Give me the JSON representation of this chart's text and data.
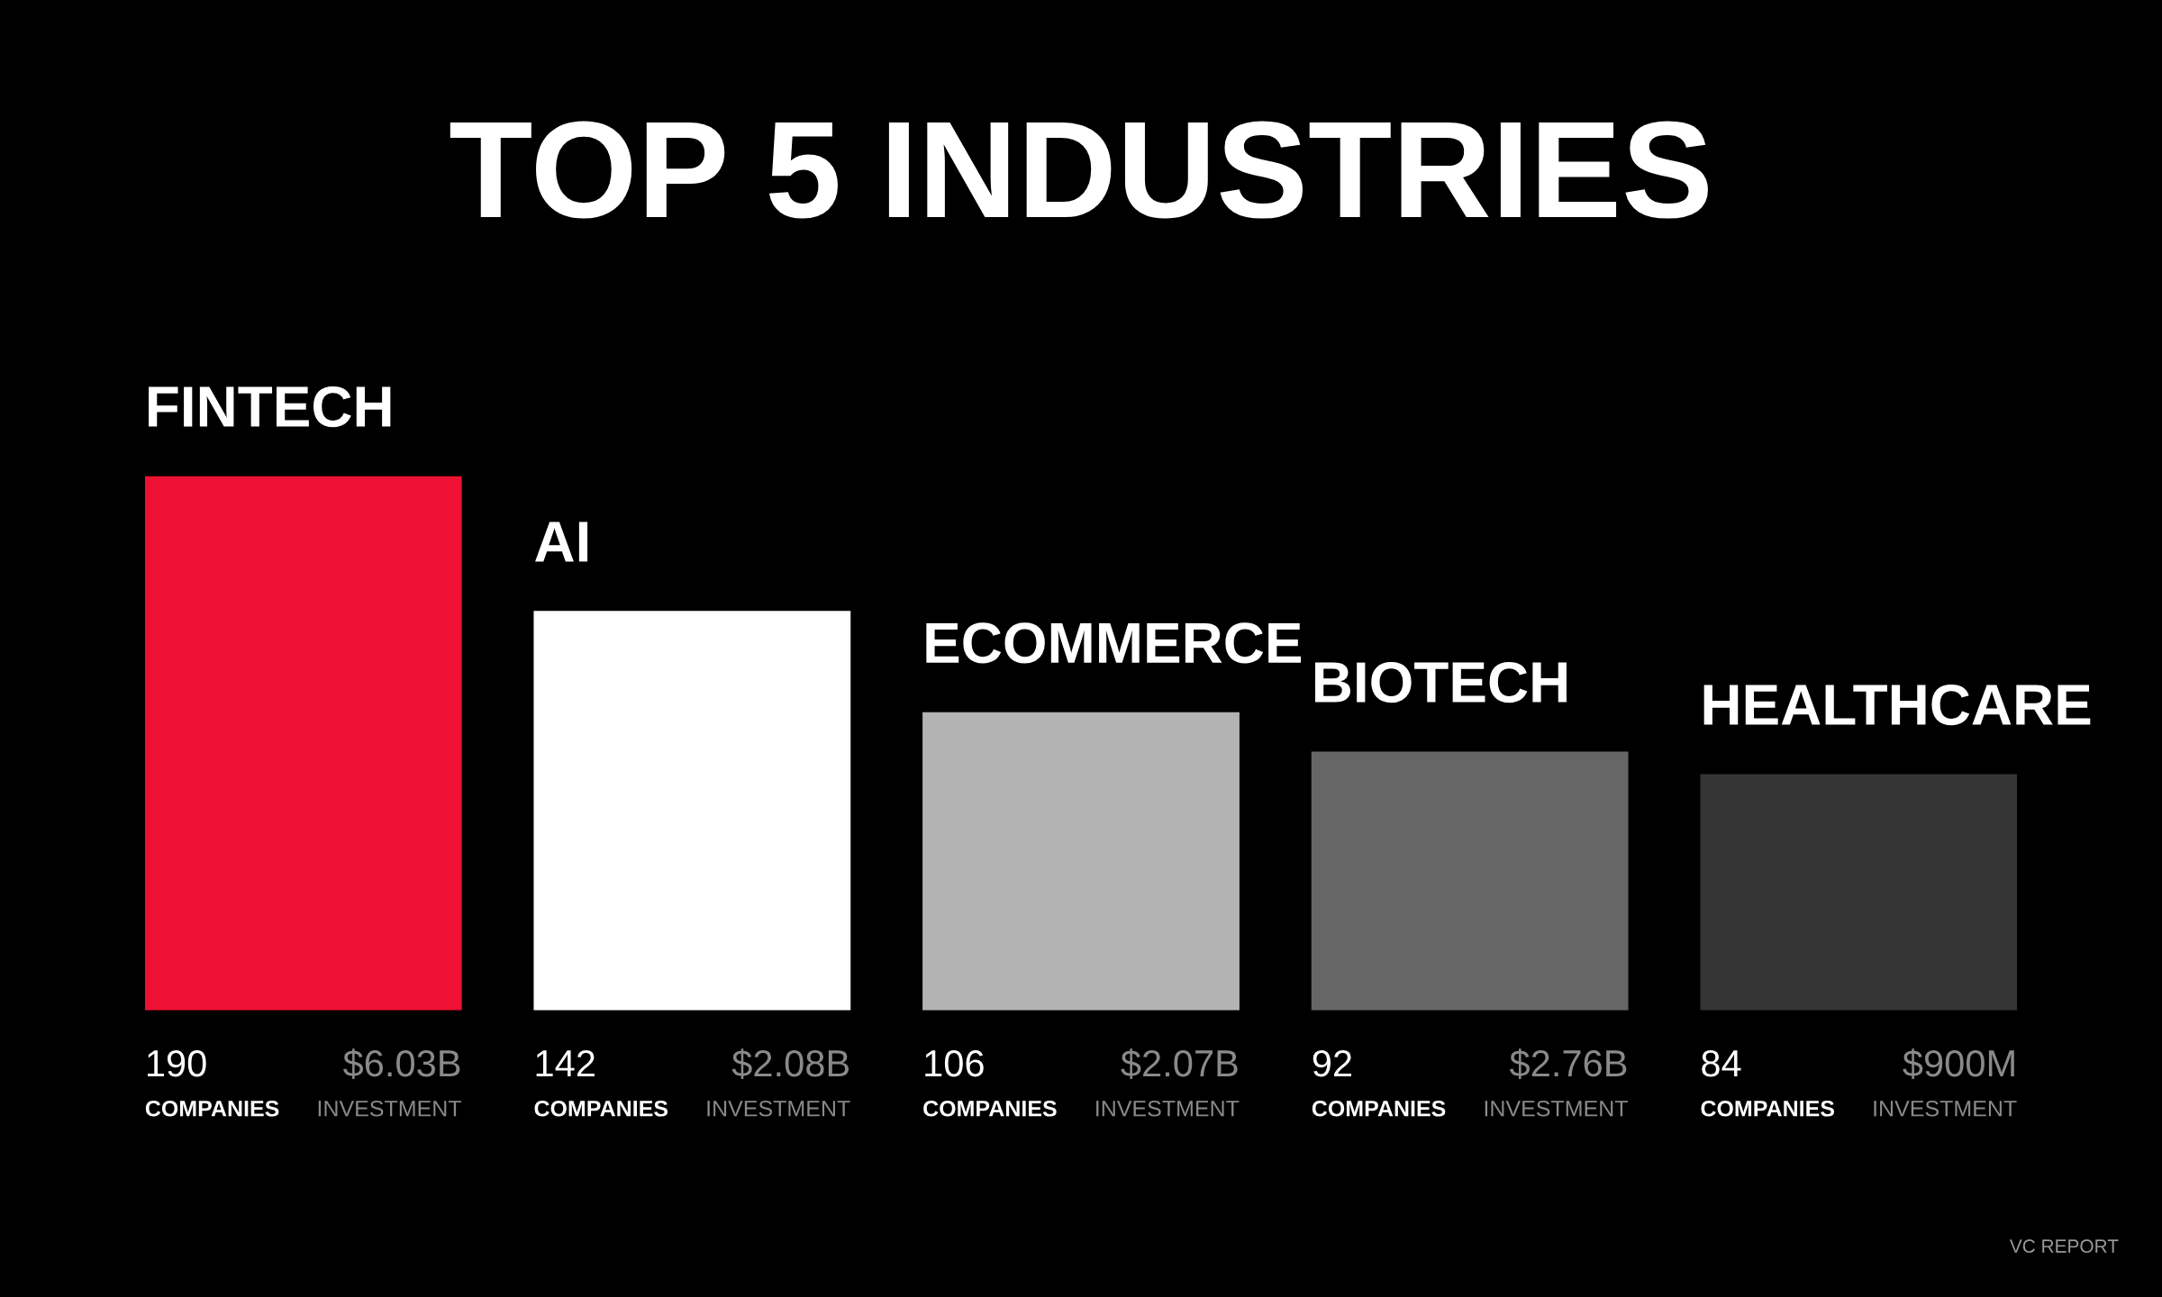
{
  "chart_data": {
    "type": "bar",
    "title": "TOP 5 INDUSTRIES",
    "categories": [
      "FINTECH",
      "AI",
      "ECOMMERCE",
      "BIOTECH",
      "HEALTHCARE"
    ],
    "values": [
      190,
      142,
      106,
      92,
      84
    ],
    "colors": [
      "#ee1133",
      "#ffffff",
      "#b3b3b3",
      "#666666",
      "#353535"
    ],
    "data_labels": true,
    "annotations": [
      "COMPANIES",
      "COMPANIES",
      "COMPANIES",
      "COMPANIES",
      "COMPANIES",
      "$6.03B\nINVESTMENT",
      "$2.08B\nINVESTMENT",
      "$2.07B\nINVESTMENT",
      "$2.76B\nINVESTMENT",
      "$900M\nINVESTMENT",
      "VC REPORT"
    ]
  }
}
